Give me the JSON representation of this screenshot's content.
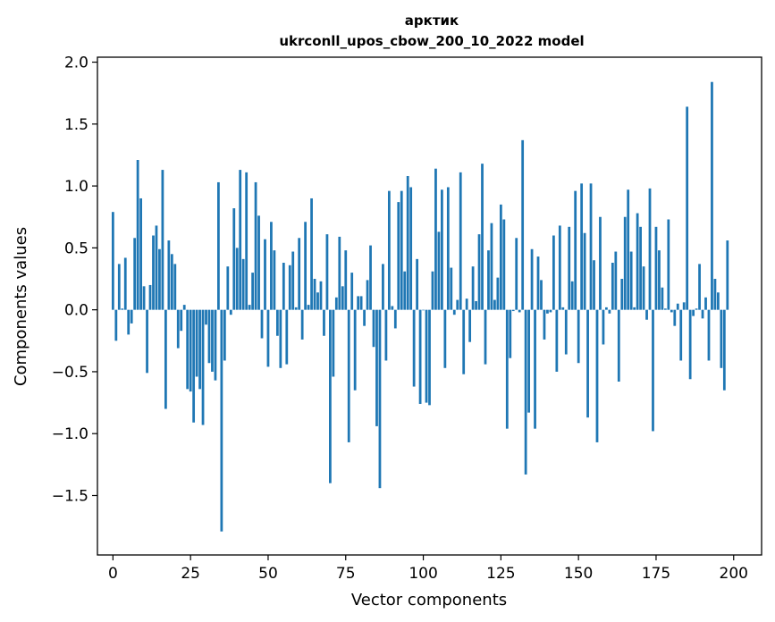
{
  "chart_data": {
    "type": "bar",
    "title": "арктик",
    "subtitle": "ukrconll_upos_cbow_200_10_2022 model",
    "xlabel": "Vector components",
    "ylabel": "Components values",
    "xlim": [
      -5,
      209
    ],
    "ylim": [
      -1.98,
      2.04
    ],
    "xticks": [
      0,
      25,
      50,
      75,
      100,
      125,
      150,
      175,
      200
    ],
    "yticks": [
      -1.5,
      -1.0,
      -0.5,
      0.0,
      0.5,
      1.0,
      1.5,
      2.0
    ],
    "ytick_labels": [
      "−1.5",
      "−1.0",
      "−0.5",
      "0.0",
      "0.5",
      "1.0",
      "1.5",
      "2.0"
    ],
    "bar_color": "#1f77b4",
    "grid": false,
    "legend": "none",
    "values": [
      0.79,
      -0.25,
      0.37,
      0.01,
      0.42,
      -0.2,
      -0.11,
      0.58,
      1.21,
      0.9,
      0.19,
      -0.51,
      0.2,
      0.6,
      0.68,
      0.49,
      1.13,
      -0.8,
      0.56,
      0.45,
      0.37,
      -0.31,
      -0.17,
      0.04,
      -0.64,
      -0.66,
      -0.91,
      -0.54,
      -0.64,
      -0.93,
      -0.12,
      -0.43,
      -0.5,
      -0.57,
      1.03,
      -1.79,
      -0.41,
      0.35,
      -0.04,
      0.82,
      0.5,
      1.13,
      0.41,
      1.11,
      0.04,
      0.3,
      1.03,
      0.76,
      -0.23,
      0.57,
      -0.46,
      0.71,
      0.48,
      -0.21,
      -0.47,
      0.38,
      -0.44,
      0.36,
      0.47,
      0.02,
      0.58,
      -0.24,
      0.71,
      0.04,
      0.9,
      0.25,
      0.14,
      0.23,
      -0.21,
      0.61,
      -1.4,
      -0.54,
      0.1,
      0.59,
      0.19,
      0.48,
      -1.07,
      0.3,
      -0.65,
      0.11,
      0.11,
      -0.13,
      0.24,
      0.52,
      -0.3,
      -0.94,
      -1.44,
      0.37,
      -0.41,
      0.96,
      0.03,
      -0.15,
      0.87,
      0.96,
      0.31,
      1.08,
      0.99,
      -0.62,
      0.41,
      -0.76,
      0.0,
      -0.75,
      -0.77,
      0.31,
      1.14,
      0.63,
      0.97,
      -0.47,
      0.99,
      0.34,
      -0.04,
      0.08,
      1.11,
      -0.52,
      0.09,
      -0.26,
      0.35,
      0.07,
      0.61,
      1.18,
      -0.44,
      0.48,
      0.7,
      0.08,
      0.26,
      0.85,
      0.73,
      -0.96,
      -0.39,
      -0.01,
      0.58,
      -0.02,
      1.37,
      -1.33,
      -0.83,
      0.49,
      -0.96,
      0.43,
      0.24,
      -0.24,
      -0.03,
      -0.02,
      0.6,
      -0.5,
      0.68,
      0.02,
      -0.36,
      0.67,
      0.23,
      0.96,
      -0.43,
      1.02,
      0.62,
      -0.87,
      1.02,
      0.4,
      -1.07,
      0.75,
      -0.28,
      0.02,
      -0.03,
      0.38,
      0.47,
      -0.58,
      0.25,
      0.75,
      0.97,
      0.47,
      0.02,
      0.78,
      0.67,
      0.35,
      -0.08,
      0.98,
      -0.98,
      0.67,
      0.48,
      0.18,
      0.01,
      0.73,
      -0.02,
      -0.13,
      0.05,
      -0.41,
      0.06,
      1.64,
      -0.56,
      -0.05,
      0.01,
      0.37,
      -0.07,
      0.1,
      -0.41,
      1.84,
      0.25,
      0.14,
      -0.47,
      -0.65,
      0.56
    ]
  }
}
